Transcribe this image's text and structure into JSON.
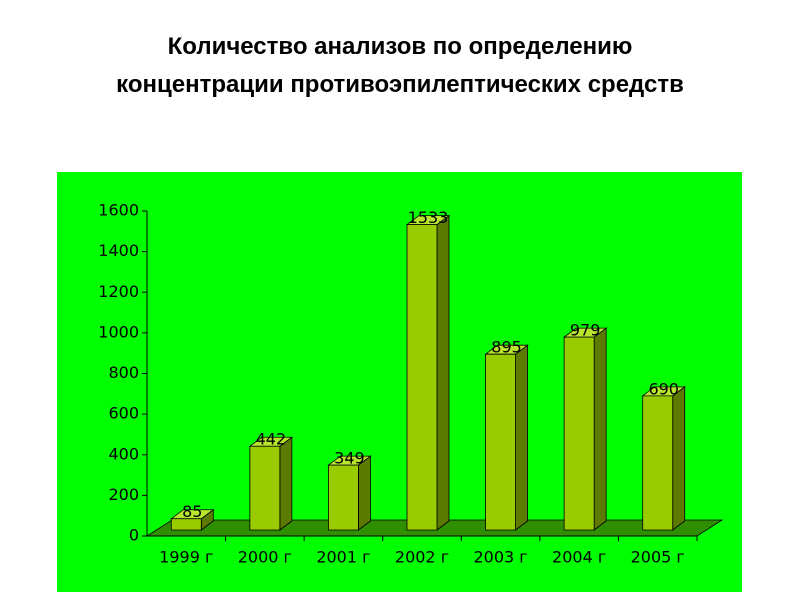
{
  "chart_data": {
    "type": "bar3d",
    "title": "Количество анализов по определению концентрации противоэпилептических средств",
    "categories": [
      "1999 г",
      "2000 г",
      "2001 г",
      "2002 г",
      "2003 г",
      "2004 г",
      "2005 г"
    ],
    "values": [
      85,
      442,
      349,
      1533,
      895,
      979,
      690
    ],
    "color": "#99cc00",
    "ylim": [
      0,
      1600
    ],
    "yticks": [
      0,
      200,
      400,
      600,
      800,
      1000,
      1200,
      1400,
      1600
    ]
  }
}
